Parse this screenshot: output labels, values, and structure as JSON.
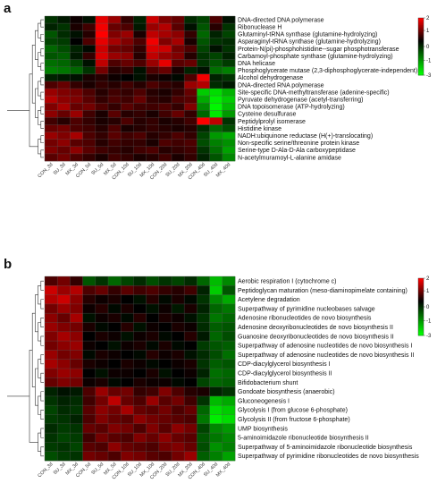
{
  "figure": {
    "colors": {
      "low": "#00ff00",
      "mid": "#000000",
      "high": "#ff0000"
    }
  },
  "chart_data": [
    {
      "type": "heatmap",
      "panel_label": "a",
      "color_scale": {
        "min": -3,
        "max": 2,
        "ticks": [
          "2",
          "1",
          "0",
          "-1",
          "-3"
        ]
      },
      "columns": [
        "CON_3d",
        "SU_3d",
        "MX_3d",
        "CON_5d",
        "SU_5d",
        "MX_5d",
        "CON_10d",
        "SU_10d",
        "MX_10d",
        "CON_20d",
        "SU_20d",
        "MX_20d",
        "CON_40d",
        "SU_40d",
        "MX_40d"
      ],
      "rows": [
        "DNA-directed DNA polymerase",
        "Ribonuclease H",
        "Glutaminyl-tRNA synthase (glutamine-hydrolyzing)",
        "Asparaginyl-tRNA synthase (glutamine-hydrolyzing)",
        "Protein-N(pi)-phosphohistidine--sugar phosphotransferase",
        "Carbamoyl-phosphate synthase (glutamine-hydrolyzing)",
        "DNA helicase",
        "Phosphoglycerate mutase (2,3-diphosphoglycerate-independent)",
        "Alcohol dehydrogenase",
        "DNA-directed RNA polymerase",
        "Site-specific DNA-methyltransferase (adenine-specific)",
        "Pyruvate dehydrogenase (acetyl-transferring)",
        "DNA topoisomerase (ATP-hydrolyzing)",
        "Cysteine desulfurase",
        "Peptidylprolyl isomerase",
        "Histidine kinase",
        "NADH:ubiquinone reductase (H(+)-translocating)",
        "Non-specific serine/threonine protein kinase",
        "Serine-type D-Ala-D-Ala carboxypeptidase",
        "N-acetylmuramoyl-L-alanine amidase"
      ],
      "values": [
        [
          -0.6,
          -0.3,
          0.1,
          -0.2,
          1.8,
          1.2,
          0.4,
          -0.4,
          1.6,
          1.0,
          0.8,
          -0.5,
          -0.8,
          0.6,
          -0.2
        ],
        [
          -0.4,
          -0.6,
          0.2,
          0.5,
          1.9,
          0.8,
          0.6,
          -0.3,
          1.2,
          1.4,
          0.7,
          -0.2,
          -1.0,
          0.3,
          -0.6
        ],
        [
          -1.0,
          -0.5,
          -0.2,
          0.3,
          2.0,
          1.0,
          1.2,
          0.2,
          1.5,
          1.3,
          1.1,
          0.4,
          -1.2,
          -0.4,
          -0.8
        ],
        [
          -0.8,
          -0.7,
          0.0,
          0.6,
          1.8,
          1.3,
          1.0,
          0.6,
          1.9,
          1.0,
          1.3,
          0.2,
          -1.0,
          -0.6,
          -0.5
        ],
        [
          -1.2,
          -0.9,
          -0.4,
          -0.1,
          1.6,
          0.9,
          0.8,
          0.4,
          1.7,
          1.6,
          0.9,
          0.6,
          -0.8,
          -0.2,
          -0.6
        ],
        [
          -1.0,
          -1.1,
          -0.3,
          0.4,
          1.7,
          1.2,
          1.1,
          0.3,
          1.5,
          1.2,
          1.0,
          0.3,
          -0.6,
          -0.8,
          -0.4
        ],
        [
          -1.3,
          -1.2,
          -0.8,
          -0.2,
          1.5,
          0.6,
          0.8,
          0.6,
          1.2,
          1.8,
          0.7,
          0.8,
          -0.6,
          -1.0,
          -0.7
        ],
        [
          -1.5,
          -1.4,
          -1.2,
          -0.6,
          0.9,
          0.3,
          0.4,
          -0.2,
          0.6,
          0.8,
          0.2,
          -0.4,
          -0.2,
          -1.3,
          -1.5
        ],
        [
          -0.4,
          -0.3,
          -0.2,
          0.2,
          0.3,
          0.1,
          0.0,
          -0.2,
          0.2,
          0.1,
          -0.1,
          0.6,
          1.9,
          -0.4,
          -0.6
        ],
        [
          0.6,
          0.8,
          0.4,
          0.2,
          0.4,
          0.3,
          0.5,
          0.3,
          0.6,
          0.4,
          0.3,
          1.2,
          1.4,
          -0.5,
          -0.3
        ],
        [
          1.2,
          1.0,
          0.9,
          0.6,
          0.3,
          0.5,
          0.4,
          0.6,
          0.3,
          0.2,
          0.4,
          0.8,
          -2.4,
          -2.6,
          -2.1
        ],
        [
          1.4,
          1.1,
          1.0,
          0.7,
          0.4,
          0.6,
          0.5,
          0.8,
          0.4,
          0.3,
          0.6,
          0.7,
          -2.0,
          -2.8,
          -2.4
        ],
        [
          1.0,
          1.3,
          0.8,
          0.9,
          0.6,
          0.4,
          0.7,
          0.5,
          0.5,
          0.6,
          0.4,
          1.0,
          -1.6,
          -2.9,
          -2.2
        ],
        [
          1.1,
          0.8,
          1.2,
          0.5,
          0.2,
          0.7,
          0.3,
          0.4,
          0.2,
          0.5,
          0.8,
          0.4,
          -1.2,
          -2.7,
          -1.8
        ],
        [
          0.5,
          0.3,
          0.6,
          0.4,
          0.2,
          0.3,
          0.6,
          0.3,
          0.4,
          0.2,
          0.3,
          0.5,
          2.0,
          1.5,
          -0.6
        ],
        [
          0.8,
          0.9,
          0.6,
          0.5,
          0.3,
          0.6,
          0.2,
          0.3,
          0.4,
          0.3,
          0.2,
          0.3,
          -0.5,
          -1.2,
          -0.9
        ],
        [
          1.2,
          1.0,
          1.3,
          0.6,
          0.4,
          0.7,
          0.5,
          0.6,
          0.3,
          0.4,
          0.6,
          0.4,
          -0.8,
          -1.8,
          -2.0
        ],
        [
          0.9,
          1.1,
          0.7,
          0.6,
          0.3,
          0.5,
          0.4,
          0.4,
          0.2,
          0.6,
          0.5,
          0.6,
          -0.9,
          -1.5,
          -1.7
        ],
        [
          1.0,
          0.8,
          1.1,
          0.7,
          0.5,
          0.4,
          0.3,
          0.5,
          0.6,
          0.3,
          0.4,
          0.5,
          -0.6,
          -1.3,
          -1.9
        ],
        [
          0.7,
          0.9,
          0.6,
          0.4,
          0.2,
          0.5,
          0.4,
          0.2,
          0.3,
          0.5,
          0.2,
          0.4,
          -0.4,
          -1.0,
          -1.6
        ]
      ]
    },
    {
      "type": "heatmap",
      "panel_label": "b",
      "color_scale": {
        "min": -3,
        "max": 2,
        "ticks": [
          "2",
          "1",
          "0",
          "-1",
          "-3"
        ]
      },
      "columns": [
        "CON_3d",
        "SU_3d",
        "MX_3d",
        "CON_5d",
        "SU_5d",
        "MX_5d",
        "CON_10d",
        "SU_10d",
        "MX_10d",
        "CON_20d",
        "SU_20d",
        "MX_20d",
        "CON_40d",
        "SU_40d",
        "MX_40d"
      ],
      "rows": [
        "Aerobic respiration I (cytochrome c)",
        "Peptidoglycan maturation (meso-diaminopimelate containing)",
        "Acetylene degradation",
        "Superpathway of pyrimidine nucleobases salvage",
        "Adenosine ribonucleotides de novo biosynthesis",
        "Adenosine deoxyribonucleotides de novo biosynthesis II",
        "Guanosine deoxyribonucleotides de novo biosynthesis II",
        "Superpathway of adenosine nucleotides de novo biosynthesis I",
        "Superpathway of adenosine nucleotides de novo biosynthesis II",
        "CDP-diacylglycerol biosynthesis I",
        "CDP-diacylglycerol biosynthesis II",
        "Bifidobacterium shunt",
        "Gondoate biosynthesis (anaerobic)",
        "Gluconeogenesis I",
        "Glycolysis I (from glucose 6-phosphate)",
        "Glycolysis II (from fructose 6-phosphate)",
        "UMP biosynthesis",
        "5-aminoimidazole ribonucleotide biosynthesis II",
        "Superpathway of 5-aminoimidazole ribonucleotide biosynthesis",
        "Superpathway of pyrimidine ribonucleotides de novo biosynthesis"
      ],
      "values": [
        [
          0.6,
          0.9,
          0.4,
          -1.0,
          -0.6,
          -1.2,
          -0.8,
          -0.5,
          -0.9,
          -0.6,
          -0.8,
          -0.5,
          -1.2,
          -2.2,
          -1.6
        ],
        [
          1.6,
          1.2,
          1.4,
          0.6,
          0.8,
          0.4,
          0.7,
          0.5,
          0.6,
          0.4,
          0.3,
          0.5,
          -0.4,
          -2.4,
          -1.0
        ],
        [
          1.4,
          1.6,
          1.1,
          0.3,
          0.1,
          0.2,
          0.0,
          -0.2,
          0.3,
          -0.1,
          0.2,
          -0.1,
          -0.6,
          -1.6,
          -2.0
        ],
        [
          0.9,
          1.2,
          1.0,
          0.1,
          0.3,
          -0.1,
          0.2,
          0.0,
          -0.2,
          0.1,
          -0.3,
          0.2,
          -0.4,
          -1.2,
          -1.4
        ],
        [
          1.1,
          0.8,
          1.3,
          -0.2,
          0.1,
          0.2,
          -0.1,
          0.3,
          0.0,
          0.2,
          0.1,
          -0.2,
          -0.6,
          -1.4,
          -1.2
        ],
        [
          1.2,
          1.0,
          0.9,
          0.2,
          -0.1,
          0.0,
          0.3,
          -0.2,
          0.1,
          0.0,
          0.2,
          0.1,
          -0.5,
          -1.1,
          -1.0
        ],
        [
          1.0,
          1.3,
          1.1,
          0.0,
          0.2,
          0.1,
          -0.2,
          0.1,
          0.2,
          -0.1,
          0.0,
          0.3,
          -0.3,
          -1.2,
          -0.9
        ],
        [
          0.9,
          1.1,
          1.2,
          0.1,
          0.0,
          -0.2,
          0.1,
          0.2,
          -0.1,
          0.2,
          -0.1,
          0.0,
          -0.7,
          -1.0,
          -1.1
        ],
        [
          1.2,
          0.9,
          1.0,
          -0.1,
          0.2,
          0.1,
          0.0,
          -0.1,
          0.3,
          0.1,
          0.2,
          -0.2,
          -0.5,
          -0.9,
          -1.3
        ],
        [
          1.3,
          1.1,
          0.8,
          0.2,
          0.1,
          0.0,
          0.2,
          0.1,
          -0.1,
          0.0,
          0.1,
          0.2,
          -0.6,
          -1.1,
          -1.0
        ],
        [
          1.0,
          1.2,
          1.1,
          0.0,
          -0.2,
          0.1,
          0.1,
          0.0,
          0.2,
          -0.2,
          0.0,
          0.1,
          -0.4,
          -1.3,
          -1.2
        ],
        [
          0.8,
          1.0,
          0.9,
          0.1,
          0.2,
          -0.1,
          0.0,
          0.2,
          0.1,
          0.1,
          -0.1,
          0.0,
          -0.8,
          -1.2,
          -1.1
        ],
        [
          -0.4,
          -0.2,
          -0.3,
          0.6,
          1.2,
          0.8,
          0.9,
          0.4,
          0.5,
          1.0,
          0.6,
          0.3,
          0.2,
          -0.4,
          -0.6
        ],
        [
          -0.6,
          -0.4,
          -0.5,
          0.5,
          0.9,
          1.5,
          0.8,
          0.6,
          1.2,
          0.7,
          0.9,
          0.5,
          -0.6,
          -2.2,
          -2.0
        ],
        [
          -0.8,
          -0.5,
          -0.6,
          0.7,
          1.1,
          0.9,
          1.3,
          0.8,
          0.7,
          0.9,
          0.6,
          0.8,
          -1.2,
          -2.6,
          -2.4
        ],
        [
          -0.7,
          -0.6,
          -0.4,
          0.6,
          1.0,
          0.8,
          0.7,
          1.1,
          0.9,
          0.8,
          0.7,
          0.6,
          -1.4,
          -2.8,
          -2.6
        ],
        [
          -0.5,
          -0.7,
          -0.6,
          0.8,
          0.7,
          1.0,
          0.9,
          0.6,
          1.0,
          0.7,
          1.1,
          0.9,
          -0.8,
          -1.6,
          -1.8
        ],
        [
          -0.6,
          -0.8,
          -0.7,
          0.5,
          0.9,
          0.7,
          0.6,
          1.0,
          0.8,
          1.1,
          0.8,
          0.7,
          -1.0,
          -1.4,
          -1.6
        ],
        [
          -0.7,
          -0.6,
          -0.8,
          0.7,
          0.6,
          1.1,
          0.8,
          0.7,
          0.6,
          0.9,
          1.0,
          0.8,
          -0.9,
          -1.7,
          -1.5
        ],
        [
          -0.9,
          -0.7,
          -0.6,
          0.9,
          0.8,
          0.6,
          1.0,
          0.9,
          0.7,
          0.6,
          0.9,
          1.2,
          -1.1,
          -1.5,
          -1.9
        ]
      ]
    }
  ]
}
